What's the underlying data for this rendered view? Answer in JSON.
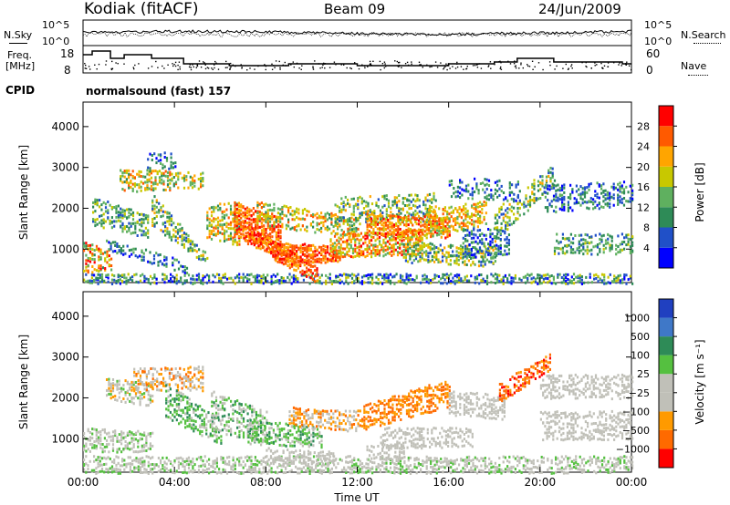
{
  "header": {
    "site": "Kodiak (fitACF)",
    "beam": "Beam 09",
    "date": "24/Jun/2009"
  },
  "top_panels": {
    "nsky_label": "N.Sky",
    "nsearch_label": "N.Search",
    "noise_ticks": [
      "10^5",
      "10^0"
    ],
    "freq_label_1": "Freq.",
    "freq_label_2": "[MHz]",
    "freq_ticks": [
      "18",
      "8"
    ],
    "nave_label": "Nave",
    "nave_ticks": [
      "60",
      "0"
    ],
    "cpid_label": "CPID",
    "cpid_text": "normalsound (fast) 157"
  },
  "chart_data": [
    {
      "type": "heatmap",
      "name": "power",
      "ylabel": "Slant Range [km]",
      "yticks": [
        "1000",
        "2000",
        "3000",
        "4000"
      ],
      "xlabel": "",
      "xticks": [
        "00:00",
        "04:00",
        "08:00",
        "12:00",
        "16:00",
        "20:00",
        "00:00"
      ],
      "colorbar_label": "Power [dB]",
      "colorbar_ticks": [
        "4",
        "8",
        "12",
        "16",
        "20",
        "24",
        "28"
      ],
      "colorbar_colors": [
        "#0000ff",
        "#2050c8",
        "#2e8b57",
        "#5fb05f",
        "#c8c800",
        "#ffa500",
        "#ff5a00",
        "#ff0000"
      ],
      "xlim_hours": [
        0,
        24
      ],
      "ylim_km": [
        180,
        4600
      ]
    },
    {
      "type": "heatmap",
      "name": "velocity",
      "ylabel": "Slant Range [km]",
      "yticks": [
        "1000",
        "2000",
        "3000",
        "4000"
      ],
      "xlabel": "Time UT",
      "xticks": [
        "00:00",
        "04:00",
        "08:00",
        "12:00",
        "16:00",
        "20:00",
        "00:00"
      ],
      "colorbar_label": "Velocity [m s⁻¹]",
      "colorbar_ticks": [
        "1000",
        "500",
        "100",
        "25",
        "−25",
        "−100",
        "−500",
        "−1000"
      ],
      "colorbar_colors": [
        "#2040c0",
        "#3f78c8",
        "#2e8b57",
        "#55c040",
        "#c0c0b8",
        "#c0c0b8",
        "#ff9a00",
        "#ff6a00",
        "#ff0000"
      ],
      "xlim_hours": [
        0,
        24
      ],
      "ylim_km": [
        180,
        4600
      ]
    }
  ]
}
